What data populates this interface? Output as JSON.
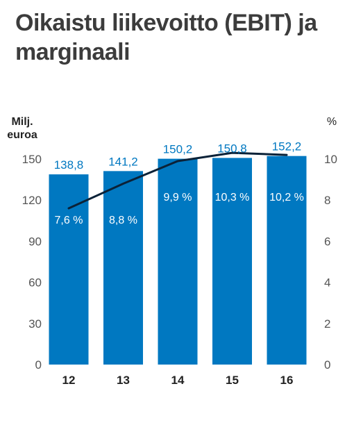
{
  "title": "Oikaistu liikevoitto (EBIT) ja marginaali",
  "chart_data": {
    "type": "bar",
    "title": "Oikaistu liikevoitto (EBIT) ja marginaali",
    "categories": [
      "12",
      "13",
      "14",
      "15",
      "16"
    ],
    "series": [
      {
        "type": "bar",
        "axis": "left",
        "values": [
          138.8,
          141.2,
          150.2,
          150.8,
          152.2
        ],
        "labels": [
          "138,8",
          "141,2",
          "150,2",
          "150,8",
          "152,2"
        ]
      },
      {
        "type": "line",
        "axis": "right",
        "values": [
          7.6,
          8.8,
          9.9,
          10.3,
          10.2
        ],
        "labels": [
          "7,6 %",
          "8,8 %",
          "9,9 %",
          "10,3 %",
          "10,2 %"
        ]
      }
    ],
    "ylabel_left": "Milj. euroa",
    "ylabel_left_lines": [
      "Milj.",
      "euroa"
    ],
    "ylabel_right": "%",
    "ylim_left": [
      0,
      150
    ],
    "ylim_right": [
      0,
      10
    ],
    "yticks_left": [
      "0",
      "30",
      "60",
      "90",
      "120",
      "150"
    ],
    "yticks_right": [
      "0",
      "2",
      "4",
      "6",
      "8",
      "10"
    ],
    "grid": false,
    "legend": "none",
    "colors": {
      "bar": "#0078c1",
      "line": "#0b2238",
      "bar_label": "#0078c1",
      "inner_label": "#ffffff",
      "axis_text": "#555555",
      "category_text": "#222222",
      "title": "#3c3c3c"
    }
  }
}
